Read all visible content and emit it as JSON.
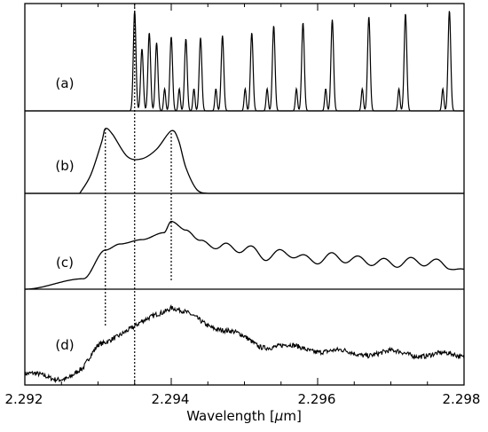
{
  "chart_data": {
    "type": "line",
    "xlabel": "Wavelength [μm]",
    "xlabel_text": "Wavelength [",
    "xlabel_unit_symbol": "μ",
    "xlabel_unit_rest": "m]",
    "xlim": [
      2.292,
      2.298
    ],
    "x_tick_labels": [
      "2.292",
      "2.294",
      "2.296",
      "2.298"
    ],
    "x_tick_values": [
      2.292,
      2.294,
      2.296,
      2.298
    ],
    "y_ticks_shown": false,
    "grid": false,
    "legend": "none",
    "panels": [
      "(a)",
      "(b)",
      "(c)",
      "(d)"
    ],
    "vertical_reference_lines": [
      {
        "x": 2.2935,
        "spans_panels": "a-d"
      },
      {
        "x": 2.2931,
        "spans_panels": "b-d"
      },
      {
        "x": 2.294,
        "spans_panels": "b-c"
      }
    ],
    "series": [
      {
        "panel": "(a)",
        "description_points": "comb of narrow peaks starting at the band head",
        "x": [
          2.2935,
          2.2936,
          2.2937,
          2.2938,
          2.294,
          2.2942,
          2.2944,
          2.2947,
          2.2951,
          2.2954,
          2.2958,
          2.2962,
          2.2967,
          2.2972,
          2.2978
        ],
        "y": [
          1.0,
          0.62,
          0.78,
          0.68,
          0.74,
          0.72,
          0.73,
          0.75,
          0.78,
          0.85,
          0.88,
          0.91,
          0.94,
          0.97,
          1.0
        ]
      },
      {
        "panel": "(b)",
        "x": [
          2.29275,
          2.2929,
          2.29305,
          2.2931,
          2.2932,
          2.2934,
          2.2936,
          2.2938,
          2.294,
          2.2941,
          2.2942,
          2.29435,
          2.2945
        ],
        "y": [
          0.0,
          0.25,
          0.7,
          0.88,
          0.8,
          0.5,
          0.47,
          0.6,
          0.85,
          0.72,
          0.35,
          0.05,
          0.0
        ]
      },
      {
        "panel": "(c)",
        "x": [
          2.292,
          2.2928,
          2.2931,
          2.2933,
          2.2936,
          2.2939,
          2.294,
          2.2942,
          2.2944,
          2.2947,
          2.295,
          2.2953,
          2.2956,
          2.2959,
          2.2962,
          2.2966,
          2.297,
          2.2974,
          2.2978,
          2.298
        ],
        "y": [
          0.0,
          0.12,
          0.45,
          0.52,
          0.57,
          0.65,
          0.78,
          0.68,
          0.55,
          0.48,
          0.47,
          0.38,
          0.42,
          0.33,
          0.37,
          0.33,
          0.3,
          0.32,
          0.28,
          0.18
        ]
      },
      {
        "panel": "(d)",
        "x": [
          2.292,
          2.2924,
          2.2926,
          2.2928,
          2.293,
          2.2932,
          2.2935,
          2.2938,
          2.294,
          2.2942,
          2.2945,
          2.2948,
          2.2952,
          2.2956,
          2.296,
          2.2965,
          2.297,
          2.2975,
          2.298
        ],
        "y": [
          0.07,
          0.04,
          0.05,
          0.12,
          0.38,
          0.47,
          0.55,
          0.72,
          0.78,
          0.7,
          0.6,
          0.52,
          0.38,
          0.36,
          0.33,
          0.29,
          0.3,
          0.28,
          0.27
        ]
      }
    ]
  }
}
